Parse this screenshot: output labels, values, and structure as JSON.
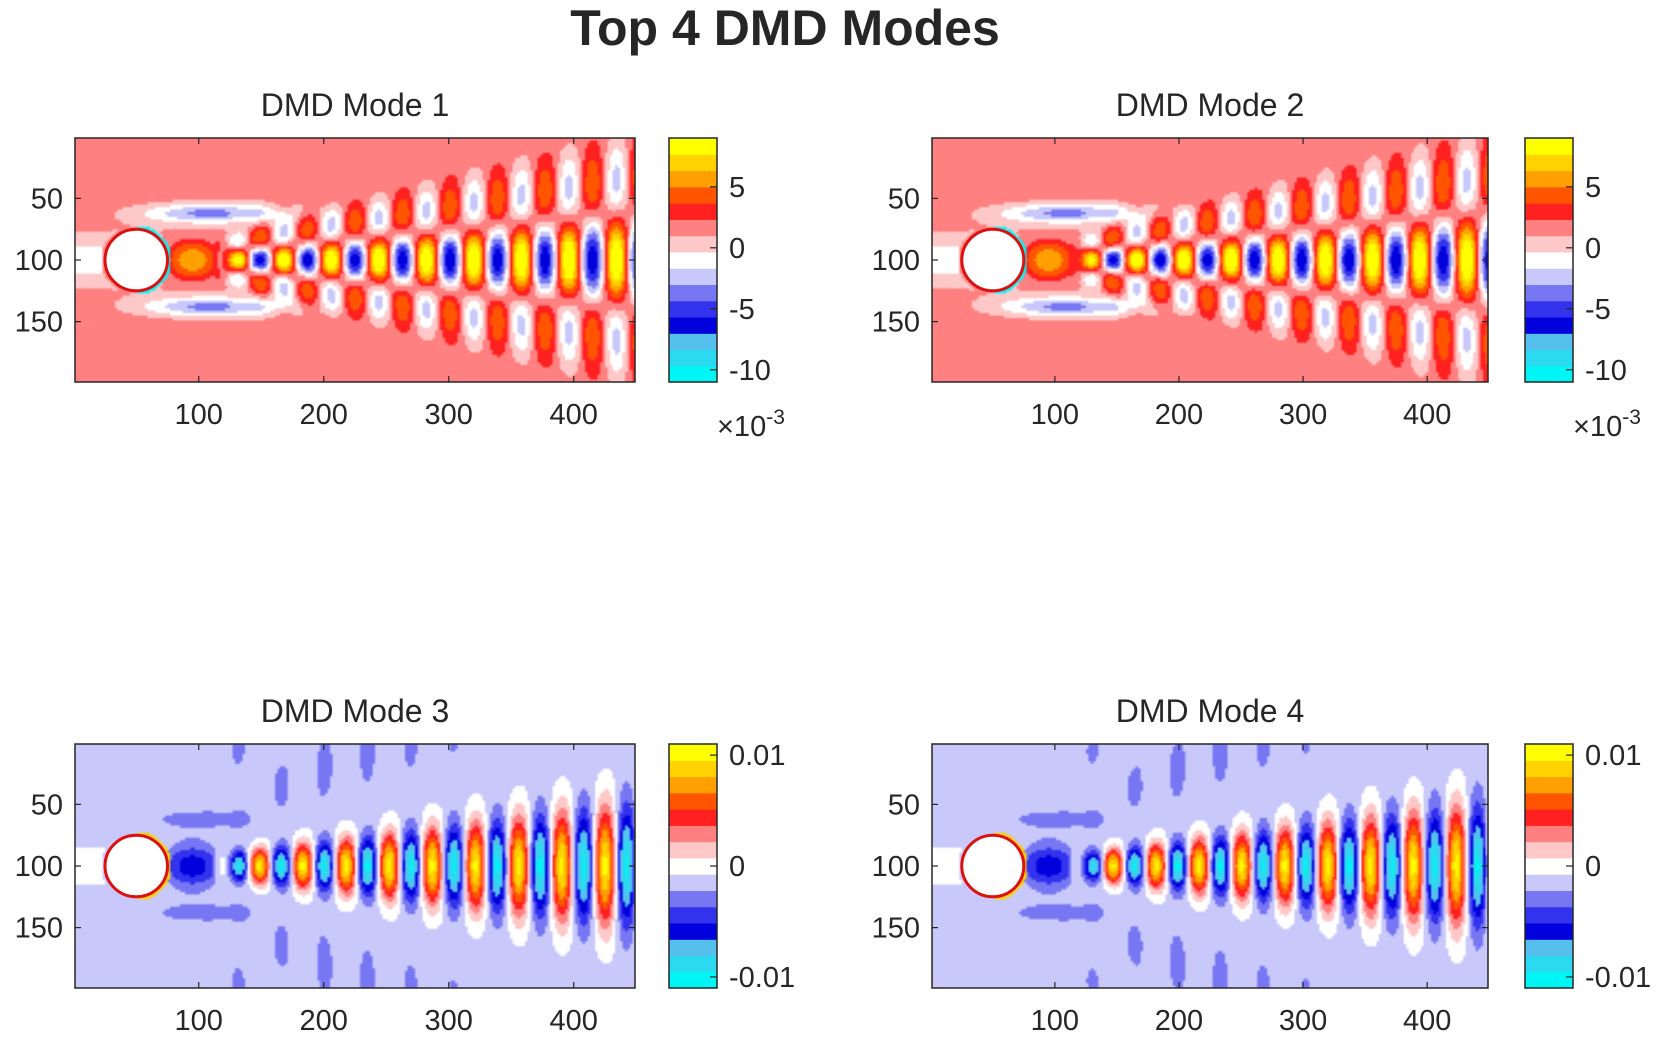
{
  "figure": {
    "title": "Top 4 DMD Modes"
  },
  "chart_data": [
    {
      "type": "heatmap",
      "title": "DMD Mode 1",
      "xlim": [
        1,
        449
      ],
      "ylim": [
        1,
        199
      ],
      "y_direction": "reversed",
      "xticks": [
        100,
        200,
        300,
        400
      ],
      "yticks": [
        50,
        100,
        150
      ],
      "cylinder": {
        "x": 50,
        "y": 100,
        "r": 25
      },
      "background_level": 0.3,
      "pattern": {
        "mode": 1,
        "wake": "antisymmetric",
        "nearwake_level": 0.72,
        "phase": 0
      },
      "colorbar": {
        "ticks": [
          5,
          0,
          -5,
          -10
        ],
        "tick_labels": [
          "5",
          "0",
          "-5",
          "-10"
        ],
        "range": [
          -11,
          9
        ],
        "exponent": "×10",
        "exponent_power": "-3",
        "colors": [
          "#00f5f5",
          "#2bd9f0",
          "#55c0ee",
          "#0000dd",
          "#3333ee",
          "#7777f4",
          "#c8c8fb",
          "#ffffff",
          "#ffc8c8",
          "#ff8080",
          "#ff2020",
          "#ff5500",
          "#ffa000",
          "#ffd200",
          "#ffff00"
        ]
      }
    },
    {
      "type": "heatmap",
      "title": "DMD Mode 2",
      "xlim": [
        1,
        449
      ],
      "ylim": [
        1,
        199
      ],
      "y_direction": "reversed",
      "xticks": [
        100,
        200,
        300,
        400
      ],
      "yticks": [
        50,
        100,
        150
      ],
      "cylinder": {
        "x": 50,
        "y": 100,
        "r": 25
      },
      "background_level": 0.3,
      "pattern": {
        "mode": 2,
        "wake": "antisymmetric",
        "nearwake_level": 0.72,
        "phase": 0.35
      },
      "colorbar": {
        "ticks": [
          5,
          0,
          -5,
          -10
        ],
        "tick_labels": [
          "5",
          "0",
          "-5",
          "-10"
        ],
        "range": [
          -11,
          9
        ],
        "exponent": "×10",
        "exponent_power": "-3",
        "colors": [
          "#00f5f5",
          "#2bd9f0",
          "#55c0ee",
          "#0000dd",
          "#3333ee",
          "#7777f4",
          "#c8c8fb",
          "#ffffff",
          "#ffc8c8",
          "#ff8080",
          "#ff2020",
          "#ff5500",
          "#ffa000",
          "#ffd200",
          "#ffff00"
        ]
      }
    },
    {
      "type": "heatmap",
      "title": "DMD Mode 3",
      "xlim": [
        1,
        449
      ],
      "ylim": [
        1,
        199
      ],
      "y_direction": "reversed",
      "xticks": [
        100,
        200,
        300,
        400
      ],
      "yticks": [
        50,
        100,
        150
      ],
      "cylinder": {
        "x": 50,
        "y": 100,
        "r": 25
      },
      "background_level": -0.2,
      "pattern": {
        "mode": 3,
        "wake": "symmetric",
        "nearwake_level": -0.55,
        "phase": 0
      },
      "colorbar": {
        "ticks": [
          0.01,
          0,
          -0.01
        ],
        "tick_labels": [
          "0.01",
          "0",
          "-0.01"
        ],
        "range": [
          -0.011,
          0.011
        ],
        "colors": [
          "#00f5f5",
          "#2bd9f0",
          "#55c0ee",
          "#0000dd",
          "#3333ee",
          "#7777f4",
          "#c8c8fb",
          "#ffffff",
          "#ffc8c8",
          "#ff8080",
          "#ff2020",
          "#ff5500",
          "#ffa000",
          "#ffd200",
          "#ffff00"
        ]
      }
    },
    {
      "type": "heatmap",
      "title": "DMD Mode 4",
      "xlim": [
        1,
        449
      ],
      "ylim": [
        1,
        199
      ],
      "y_direction": "reversed",
      "xticks": [
        100,
        200,
        300,
        400
      ],
      "yticks": [
        50,
        100,
        150
      ],
      "cylinder": {
        "x": 50,
        "y": 100,
        "r": 25
      },
      "background_level": -0.2,
      "pattern": {
        "mode": 4,
        "wake": "symmetric",
        "nearwake_level": -0.55,
        "phase": 0.3
      },
      "colorbar": {
        "ticks": [
          0.01,
          0,
          -0.01
        ],
        "tick_labels": [
          "0.01",
          "0",
          "-0.01"
        ],
        "range": [
          -0.011,
          0.011
        ],
        "colors": [
          "#00f5f5",
          "#2bd9f0",
          "#55c0ee",
          "#0000dd",
          "#3333ee",
          "#7777f4",
          "#c8c8fb",
          "#ffffff",
          "#ffc8c8",
          "#ff8080",
          "#ff2020",
          "#ff5500",
          "#ffa000",
          "#ffd200",
          "#ffff00"
        ]
      }
    }
  ]
}
